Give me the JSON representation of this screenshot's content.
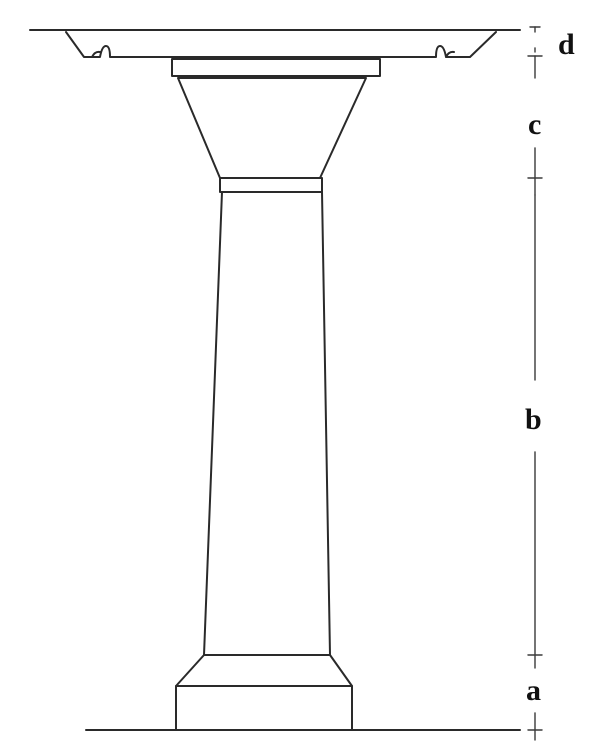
{
  "figure": {
    "labels": {
      "a": "a",
      "b": "b",
      "c": "c",
      "d": "d"
    }
  }
}
